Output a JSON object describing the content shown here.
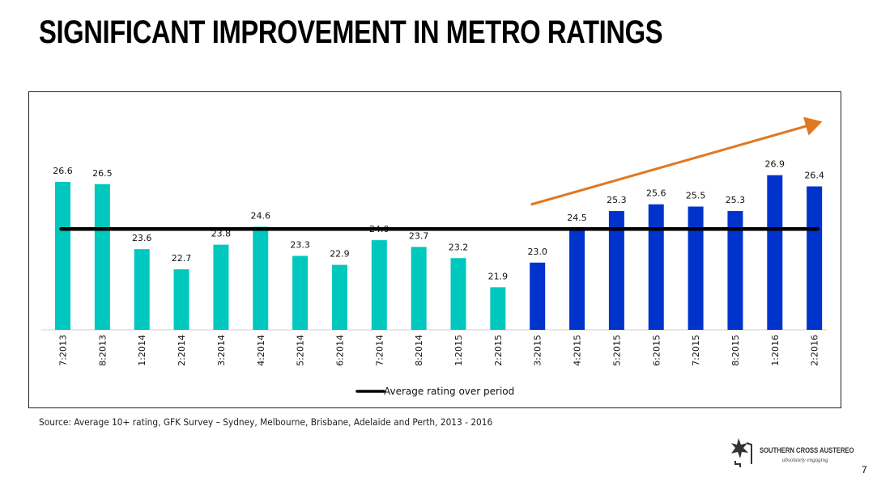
{
  "slide": {
    "title": "SIGNIFICANT IMPROVEMENT IN METRO RATINGS",
    "source": "Source: Average 10+ rating, GFK Survey – Sydney, Melbourne, Brisbane, Adelaide and Perth, 2013 - 2016",
    "logo_name": "SOUTHERN CROSS AUSTEREO",
    "logo_tagline": "absolutely engaging",
    "page_number": "7"
  },
  "colors": {
    "bar_early": "#00C8BE",
    "bar_recent": "#0033CC",
    "average_line": "#000000",
    "trend_arrow": "#E07820"
  },
  "chart_data": {
    "type": "bar",
    "title": "",
    "xlabel": "",
    "ylabel": "",
    "ylim": [
      20,
      27.5
    ],
    "grid": false,
    "categories": [
      "7:2013",
      "8:2013",
      "1:2014",
      "2:2014",
      "3:2014",
      "4:2014",
      "5:2014",
      "6:2014",
      "7:2014",
      "8:2014",
      "1:2015",
      "2:2015",
      "3:2015",
      "4:2015",
      "5:2015",
      "6:2015",
      "7:2015",
      "8:2015",
      "1:2016",
      "2:2016"
    ],
    "values": [
      26.6,
      26.5,
      23.6,
      22.7,
      23.8,
      24.6,
      23.3,
      22.9,
      24.0,
      23.7,
      23.2,
      21.9,
      23.0,
      24.5,
      25.3,
      25.6,
      25.5,
      25.3,
      26.9,
      26.4
    ],
    "data_labels": [
      "26.6",
      "26.5",
      "23.6",
      "22.7",
      "23.8",
      "24.6",
      "23.3",
      "22.9",
      "24.0",
      "23.7",
      "23.2",
      "21.9",
      "23.0",
      "24.5",
      "25.3",
      "25.6",
      "25.5",
      "25.3",
      "26.9",
      "26.4"
    ],
    "highlight_from_index": 12,
    "average_line": {
      "name": "Average rating over period",
      "value": 24.5
    },
    "trend_arrow": {
      "from_category": "3:2015",
      "to_category": "2:2016",
      "direction": "up"
    },
    "legend": {
      "entries": [
        "Average rating over period"
      ],
      "placement": "bottom-center"
    }
  }
}
